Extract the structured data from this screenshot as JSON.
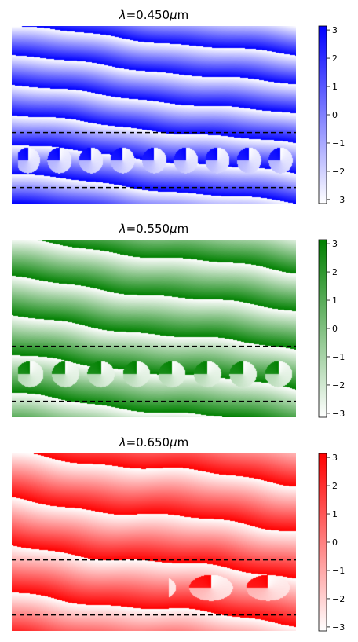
{
  "chart_data": [
    {
      "type": "heatmap",
      "title_prefix": "λ=",
      "title_value": "0.450",
      "title_unit": "μm",
      "colormap": {
        "low": "#ffffff",
        "high": "#0000ff"
      },
      "colorbar": {
        "range": [
          -3.14159,
          3.14159
        ],
        "ticks": [
          3,
          2,
          1,
          0,
          -1,
          -2,
          -3
        ],
        "tick_labels": [
          "3",
          "2",
          "1",
          "0",
          "−1",
          "−2",
          "−3"
        ]
      },
      "dashed_lines": "black, horizontal, two lines bounding the middle band",
      "wave": {
        "bands": 6,
        "tilt": 0.55,
        "holes": 9
      }
    },
    {
      "type": "heatmap",
      "title_prefix": "λ=",
      "title_value": "0.550",
      "title_unit": "μm",
      "colormap": {
        "low": "#ffffff",
        "high": "#008000"
      },
      "colorbar": {
        "range": [
          -3.14159,
          3.14159
        ],
        "ticks": [
          3,
          2,
          1,
          0,
          -1,
          -2,
          -3
        ],
        "tick_labels": [
          "3",
          "2",
          "1",
          "0",
          "−1",
          "−2",
          "−3"
        ]
      },
      "dashed_lines": "black, horizontal, two lines bounding the middle band",
      "wave": {
        "bands": 4.6,
        "tilt": 0.6,
        "holes": 8
      }
    },
    {
      "type": "heatmap",
      "title_prefix": "λ=",
      "title_value": "0.650",
      "title_unit": "μm",
      "colormap": {
        "low": "#ffffff",
        "high": "#ff0000"
      },
      "colorbar": {
        "range": [
          -3.14159,
          3.14159
        ],
        "ticks": [
          3,
          2,
          1,
          0,
          -1,
          -2,
          -3
        ],
        "tick_labels": [
          "3",
          "2",
          "1",
          "0",
          "−1",
          "−2",
          "−3"
        ]
      },
      "dashed_lines": "black, horizontal, two lines bounding the middle band",
      "wave": {
        "bands": 3.8,
        "tilt": 0.55,
        "holes": 5
      }
    }
  ]
}
